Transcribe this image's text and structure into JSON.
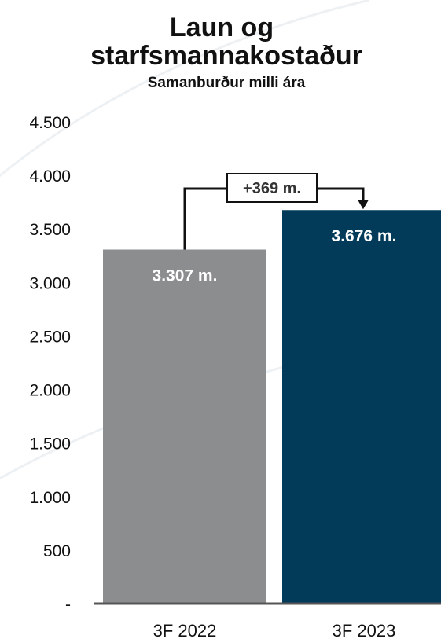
{
  "chart_data": {
    "type": "bar",
    "title_lines": [
      "Laun og",
      "starfsmannakostaður"
    ],
    "subtitle": "Samanburður milli ára",
    "categories": [
      "3F 2022",
      "3F 2023"
    ],
    "values": [
      3307,
      3676
    ],
    "data_labels": [
      "3.307 m.",
      "3.676 m."
    ],
    "bar_colors": [
      "#8b8d8e",
      "#023a5a"
    ],
    "ylim": [
      0,
      4500
    ],
    "yticks": [
      0,
      500,
      1000,
      1500,
      2000,
      2500,
      3000,
      3500,
      4000,
      4500
    ],
    "ytick_labels": [
      "-",
      "500",
      "1.000",
      "1.500",
      "2.000",
      "2.500",
      "3.000",
      "3.500",
      "4.000",
      "4.500"
    ],
    "delta_label": "+369 m.",
    "grid": false,
    "legend": "none"
  }
}
